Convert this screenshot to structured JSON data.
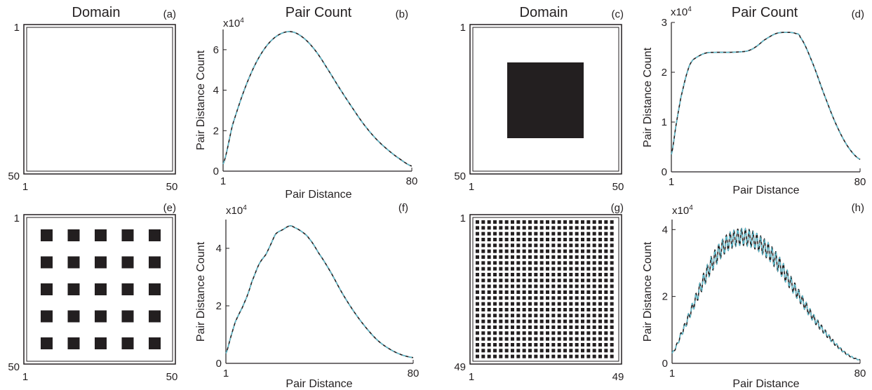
{
  "colors": {
    "ink": "#231f20",
    "cyan": "#5fc3d6"
  },
  "panels": [
    {
      "id": "a",
      "kind": "domain",
      "title": "Domain",
      "label": "(a)",
      "ticks": {
        "top_left": "1",
        "bottom_left": "50",
        "x_left": "1",
        "x_right": "50"
      },
      "pattern": "empty"
    },
    {
      "id": "b",
      "kind": "chart",
      "title": "Pair Count",
      "label": "(b)",
      "exponent": "x10",
      "exponent_power": "4",
      "xlabel": "Pair Distance",
      "ylabel": "Pair Distance Count",
      "xticks": [
        "1",
        "80"
      ],
      "yticks": [
        "0",
        "2",
        "4",
        "6"
      ]
    },
    {
      "id": "c",
      "kind": "domain",
      "title": "Domain",
      "label": "(c)",
      "ticks": {
        "top_left": "1",
        "bottom_left": "50",
        "x_left": "1",
        "x_right": "50"
      },
      "pattern": "single-square"
    },
    {
      "id": "d",
      "kind": "chart",
      "title": "Pair Count",
      "label": "(d)",
      "exponent": "x10",
      "exponent_power": "4",
      "xlabel": "Pair Distance",
      "ylabel": "Pair Distance Count",
      "xticks": [
        "1",
        "80"
      ],
      "yticks": [
        "0",
        "1",
        "2",
        "3"
      ]
    },
    {
      "id": "e",
      "kind": "domain",
      "title": "",
      "label": "(e)",
      "ticks": {
        "top_left": "1",
        "bottom_left": "50",
        "x_left": "1",
        "x_right": "50"
      },
      "pattern": "5x5-squares"
    },
    {
      "id": "f",
      "kind": "chart",
      "title": "",
      "label": "(f)",
      "exponent": "x10",
      "exponent_power": "4",
      "xlabel": "Pair Distance",
      "ylabel": "Pair Distance Count",
      "xticks": [
        "1",
        "80"
      ],
      "yticks": [
        "0",
        "2",
        "4"
      ]
    },
    {
      "id": "g",
      "kind": "domain",
      "title": "",
      "label": "(g)",
      "ticks": {
        "top_left": "1",
        "bottom_left": "49",
        "x_left": "1",
        "x_right": "49"
      },
      "pattern": "dense-grid"
    },
    {
      "id": "h",
      "kind": "chart",
      "title": "",
      "label": "(h)",
      "exponent": "x10",
      "exponent_power": "4",
      "xlabel": "Pair Distance",
      "ylabel": "Pair Distance Count",
      "xticks": [
        "1",
        "80"
      ],
      "yticks": [
        "0",
        "2",
        "4"
      ]
    }
  ],
  "chart_data": [
    {
      "panel": "b",
      "type": "line",
      "x": [
        1,
        5,
        10,
        15,
        20,
        25,
        30,
        35,
        40,
        45,
        50,
        55,
        60,
        65,
        70,
        75,
        80
      ],
      "series": [
        {
          "values": [
            0.35,
            2.3,
            4.05,
            5.4,
            6.3,
            6.78,
            6.88,
            6.55,
            5.9,
            5.0,
            4.05,
            3.15,
            2.3,
            1.6,
            1.05,
            0.6,
            0.25
          ]
        }
      ],
      "xlim": [
        1,
        80
      ],
      "ylim": [
        0,
        7
      ],
      "y_multiplier": 10000
    },
    {
      "panel": "d",
      "type": "line",
      "x": [
        1,
        3,
        5,
        8,
        10,
        15,
        20,
        25,
        30,
        33,
        36,
        40,
        45,
        50,
        53,
        55,
        60,
        65,
        70,
        75,
        80
      ],
      "series": [
        {
          "values": [
            0.35,
            0.95,
            1.5,
            2.05,
            2.25,
            2.38,
            2.4,
            2.4,
            2.41,
            2.43,
            2.5,
            2.65,
            2.78,
            2.8,
            2.78,
            2.7,
            2.2,
            1.55,
            0.95,
            0.5,
            0.25
          ]
        }
      ],
      "xlim": [
        1,
        80
      ],
      "ylim": [
        0,
        3
      ],
      "y_multiplier": 10000
    },
    {
      "panel": "f",
      "type": "line",
      "x": [
        1,
        3,
        5,
        8,
        10,
        12,
        15,
        18,
        20,
        22,
        25,
        28,
        30,
        33,
        36,
        40,
        45,
        50,
        55,
        60,
        65,
        70,
        75,
        80
      ],
      "series": [
        {
          "values": [
            0.35,
            0.9,
            1.45,
            1.95,
            2.35,
            2.85,
            3.45,
            3.8,
            4.15,
            4.5,
            4.65,
            4.78,
            4.72,
            4.58,
            4.35,
            3.85,
            3.2,
            2.45,
            1.8,
            1.25,
            0.8,
            0.5,
            0.3,
            0.2
          ]
        }
      ],
      "xlim": [
        1,
        80
      ],
      "ylim": [
        0,
        5
      ],
      "y_multiplier": 10000
    },
    {
      "panel": "h",
      "type": "line",
      "x": [
        1,
        5,
        10,
        15,
        20,
        25,
        30,
        35,
        40,
        45,
        50,
        55,
        60,
        65,
        70,
        75,
        80
      ],
      "series": [
        {
          "values": [
            0.3,
            0.9,
            1.75,
            2.6,
            3.25,
            3.65,
            3.78,
            3.7,
            3.45,
            3.05,
            2.5,
            1.95,
            1.4,
            0.95,
            0.55,
            0.25,
            0.1
          ]
        }
      ],
      "oscillation_amplitude": 0.25,
      "xlim": [
        1,
        80
      ],
      "ylim": [
        0,
        4.3
      ],
      "y_multiplier": 10000
    }
  ]
}
